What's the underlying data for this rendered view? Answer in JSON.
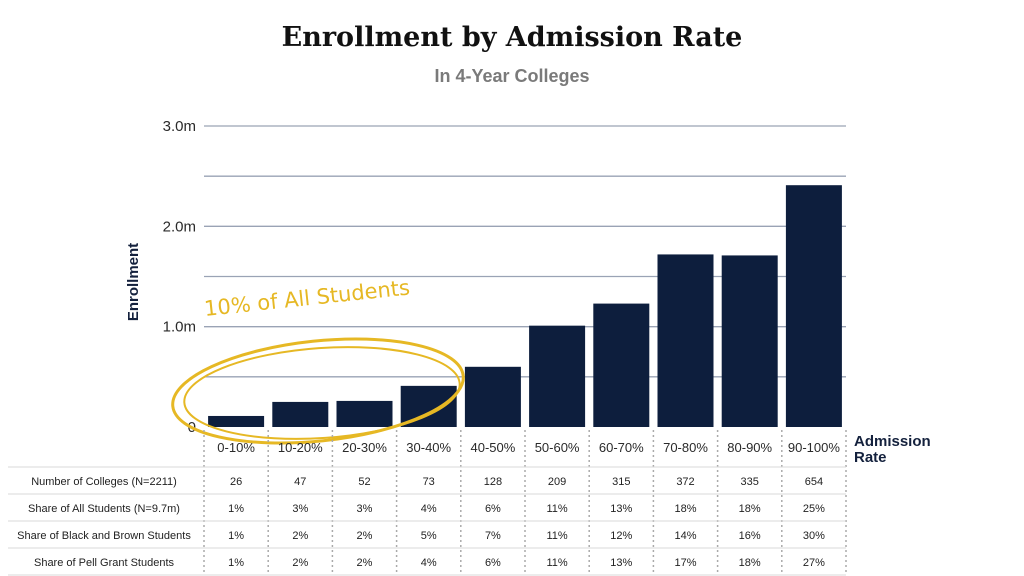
{
  "chart_data": {
    "type": "bar",
    "title": "Enrollment by Admission Rate",
    "subtitle": "In 4-Year Colleges",
    "ylabel": "Enrollment",
    "xlabel": "Admission Rate",
    "ylim": [
      0,
      3.0
    ],
    "y_unit": "millions",
    "y_ticks": [
      {
        "value": 0,
        "label": "0"
      },
      {
        "value": 1.0,
        "label": "1.0m"
      },
      {
        "value": 2.0,
        "label": "2.0m"
      },
      {
        "value": 3.0,
        "label": "3.0m"
      }
    ],
    "gridlines_at": [
      0.5,
      1.0,
      1.5,
      2.0,
      2.5,
      3.0
    ],
    "grid": true,
    "bar_color": "#0d1e3d",
    "categories": [
      "0-10%",
      "10-20%",
      "20-30%",
      "30-40%",
      "40-50%",
      "50-60%",
      "60-70%",
      "70-80%",
      "80-90%",
      "90-100%"
    ],
    "values": [
      0.11,
      0.25,
      0.26,
      0.41,
      0.6,
      1.01,
      1.23,
      1.72,
      1.71,
      2.41
    ],
    "annotation": {
      "text": "10% of All Students",
      "color": "#e6b824",
      "highlights_categories": [
        "0-10%",
        "10-20%",
        "20-30%",
        "30-40%"
      ]
    },
    "table": {
      "rows": [
        {
          "label": "Number of Colleges (N=2211)",
          "values": [
            "26",
            "47",
            "52",
            "73",
            "128",
            "209",
            "315",
            "372",
            "335",
            "654"
          ]
        },
        {
          "label": "Share of All Students (N=9.7m)",
          "values": [
            "1%",
            "3%",
            "3%",
            "4%",
            "6%",
            "11%",
            "13%",
            "18%",
            "18%",
            "25%"
          ]
        },
        {
          "label": "Share of Black and Brown Students",
          "values": [
            "1%",
            "2%",
            "2%",
            "5%",
            "7%",
            "11%",
            "12%",
            "14%",
            "16%",
            "30%"
          ]
        },
        {
          "label": "Share of Pell Grant Students",
          "values": [
            "1%",
            "2%",
            "2%",
            "4%",
            "6%",
            "11%",
            "13%",
            "17%",
            "18%",
            "27%"
          ]
        }
      ]
    }
  }
}
